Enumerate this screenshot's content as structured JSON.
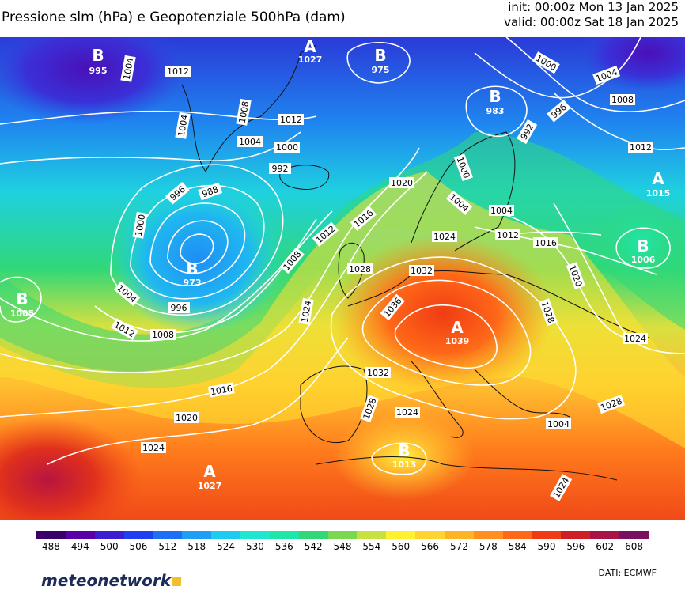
{
  "header": {
    "title": "Pressione slm (hPa) e Geopotenziale 500hPa (dam)",
    "init": "init: 00:00z Mon 13 Jan 2025",
    "valid": "valid: 00:00z Sat 18 Jan 2025"
  },
  "colorbar": {
    "ticks": [
      "488",
      "494",
      "500",
      "506",
      "512",
      "518",
      "524",
      "530",
      "536",
      "542",
      "548",
      "554",
      "560",
      "566",
      "572",
      "578",
      "584",
      "590",
      "596",
      "602",
      "608"
    ],
    "colors": [
      "#3a006a",
      "#5a00a8",
      "#3c1fd0",
      "#1f3ff0",
      "#1f6ff5",
      "#1f9ef5",
      "#1fcaf0",
      "#1fe6d0",
      "#1ee6a8",
      "#30d878",
      "#7ad850",
      "#c8e040",
      "#fff030",
      "#ffd430",
      "#ffb428",
      "#ff9020",
      "#ff6818",
      "#f03c14",
      "#d01e28",
      "#a81448",
      "#7a1060"
    ]
  },
  "pressure_labels": [
    {
      "text": "1012"
    },
    {
      "text": "1004"
    },
    {
      "text": "1004"
    },
    {
      "text": "1008"
    },
    {
      "text": "1012"
    },
    {
      "text": "1004"
    },
    {
      "text": "1000"
    },
    {
      "text": "992"
    },
    {
      "text": "996"
    },
    {
      "text": "988"
    },
    {
      "text": "1000"
    },
    {
      "text": "1004"
    },
    {
      "text": "996"
    },
    {
      "text": "1012"
    },
    {
      "text": "1008"
    },
    {
      "text": "1016"
    },
    {
      "text": "1020"
    },
    {
      "text": "1024"
    },
    {
      "text": "1020"
    },
    {
      "text": "1016"
    },
    {
      "text": "1012"
    },
    {
      "text": "1008"
    },
    {
      "text": "1024"
    },
    {
      "text": "1028"
    },
    {
      "text": "1032"
    },
    {
      "text": "1036"
    },
    {
      "text": "1032"
    },
    {
      "text": "1028"
    },
    {
      "text": "1024"
    },
    {
      "text": "1024"
    },
    {
      "text": "1000"
    },
    {
      "text": "1004"
    },
    {
      "text": "1004"
    },
    {
      "text": "1012"
    },
    {
      "text": "1016"
    },
    {
      "text": "1020"
    },
    {
      "text": "1028"
    },
    {
      "text": "1024"
    },
    {
      "text": "1028"
    },
    {
      "text": "1024"
    },
    {
      "text": "1008"
    },
    {
      "text": "1012"
    },
    {
      "text": "1004"
    },
    {
      "text": "996"
    },
    {
      "text": "992"
    },
    {
      "text": "1000"
    },
    {
      "text": "1004"
    }
  ],
  "centers": [
    {
      "letter": "B",
      "value": "995"
    },
    {
      "letter": "A",
      "value": "1027"
    },
    {
      "letter": "B",
      "value": "975"
    },
    {
      "letter": "B",
      "value": "983"
    },
    {
      "letter": "B",
      "value": "973"
    },
    {
      "letter": "B",
      "value": "1005"
    },
    {
      "letter": "A",
      "value": "1015"
    },
    {
      "letter": "B",
      "value": "1006"
    },
    {
      "letter": "A",
      "value": "1039"
    },
    {
      "letter": "B",
      "value": "1013"
    },
    {
      "letter": "A",
      "value": "1027"
    }
  ],
  "footer": {
    "brand": "meteonetwork",
    "credit": "DATI:  ECMWF"
  }
}
